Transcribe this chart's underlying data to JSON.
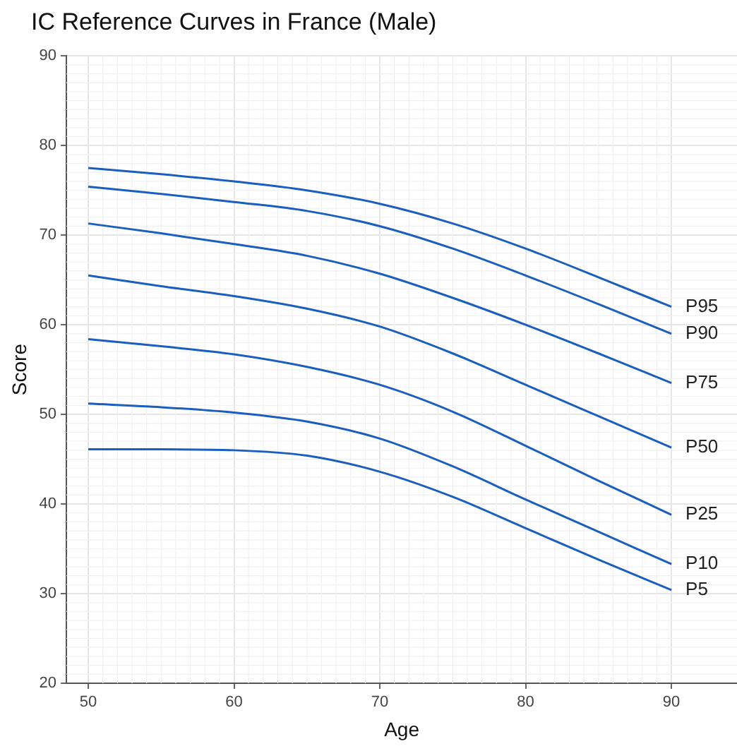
{
  "chart_data": {
    "type": "line",
    "title": "IC Reference Curves in France (Male)",
    "xlabel": "Age",
    "ylabel": "Score",
    "x": [
      50,
      55,
      60,
      65,
      70,
      75,
      80,
      85,
      90
    ],
    "series": [
      {
        "name": "P95",
        "color": "#1a5fc0",
        "values": [
          77.5,
          76.8,
          76,
          75,
          73.5,
          71.3,
          68.5,
          65.3,
          62
        ]
      },
      {
        "name": "P90",
        "color": "#1a5fc0",
        "values": [
          75.4,
          74.6,
          73.7,
          72.7,
          71,
          68.5,
          65.5,
          62.3,
          59
        ]
      },
      {
        "name": "P75",
        "color": "#1a5fc0",
        "values": [
          71.3,
          70.2,
          69,
          67.7,
          65.7,
          63,
          60,
          56.8,
          53.5
        ]
      },
      {
        "name": "P50",
        "color": "#1a5fc0",
        "values": [
          65.5,
          64.3,
          63.2,
          61.8,
          59.8,
          56.8,
          53.3,
          49.8,
          46.3
        ]
      },
      {
        "name": "P25",
        "color": "#1a5fc0",
        "values": [
          58.4,
          57.6,
          56.7,
          55.3,
          53.3,
          50.3,
          46.5,
          42.6,
          38.8
        ]
      },
      {
        "name": "P10",
        "color": "#1a5fc0",
        "values": [
          51.2,
          50.8,
          50.2,
          49.2,
          47.3,
          44.2,
          40.5,
          36.9,
          33.3
        ]
      },
      {
        "name": "P5",
        "color": "#1a5fc0",
        "values": [
          46.1,
          46.1,
          46,
          45.4,
          43.6,
          40.8,
          37.3,
          33.8,
          30.4
        ]
      }
    ],
    "xlim": [
      48.5,
      94.5
    ],
    "xticks": [
      50,
      60,
      70,
      80,
      90
    ],
    "ylim": [
      20,
      90
    ],
    "yticks": [
      20,
      30,
      40,
      50,
      60,
      70,
      80,
      90
    ],
    "grid": true,
    "legend": false,
    "marker": "none",
    "line_style": "solid"
  }
}
